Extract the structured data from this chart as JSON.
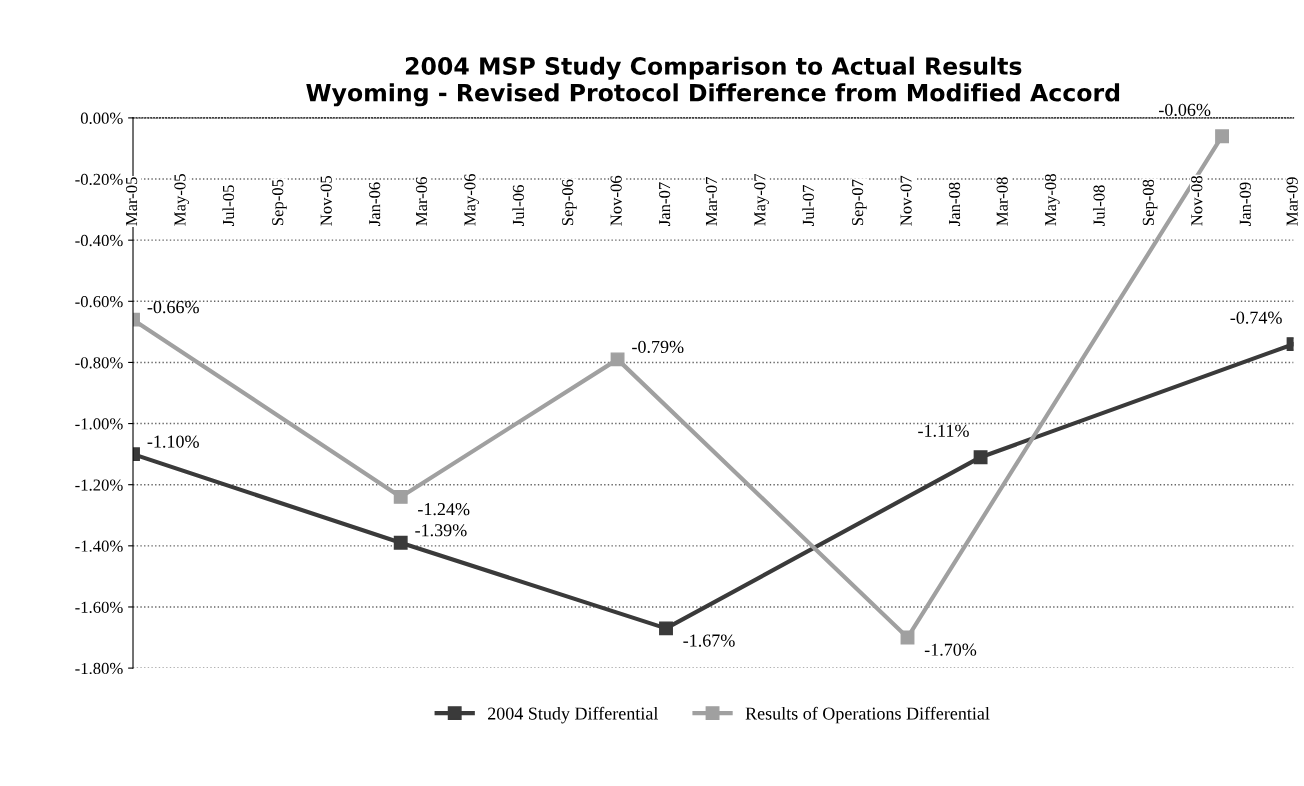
{
  "chart_data": {
    "type": "line",
    "title": "2004 MSP Study Comparison to Actual Results\nWyoming - Revised Protocol Difference from Modified Accord",
    "series": [
      {
        "name": "2004 Study Differential",
        "color": "#3a3a3a",
        "x": [
          "2005-03",
          "2006-02",
          "2007-01",
          "2008-02",
          "2009-03"
        ],
        "values": [
          -1.1,
          -1.39,
          -1.67,
          -1.11,
          -0.74
        ],
        "value_labels": [
          "-1.10%",
          "-1.39%",
          "-1.67%",
          "-1.11%",
          "-0.74%"
        ]
      },
      {
        "name": "Results of Operations Differential",
        "color": "#a0a0a0",
        "x": [
          "2005-03",
          "2006-02",
          "2006-11",
          "2007-11",
          "2008-12"
        ],
        "values": [
          -0.66,
          -1.24,
          -0.79,
          -1.7,
          -0.06
        ],
        "value_labels": [
          "-0.66%",
          "-1.24%",
          "-0.79%",
          "-1.70%",
          "-0.06%"
        ]
      }
    ],
    "xlim": [
      "2005-03",
      "2009-03"
    ],
    "xticks": [
      {
        "value": "2005-03",
        "label": "Mar-05"
      },
      {
        "value": "2005-05",
        "label": "May-05"
      },
      {
        "value": "2005-07",
        "label": "Jul-05"
      },
      {
        "value": "2005-09",
        "label": "Sep-05"
      },
      {
        "value": "2005-11",
        "label": "Nov-05"
      },
      {
        "value": "2006-01",
        "label": "Jan-06"
      },
      {
        "value": "2006-03",
        "label": "Mar-06"
      },
      {
        "value": "2006-05",
        "label": "May-06"
      },
      {
        "value": "2006-07",
        "label": "Jul-06"
      },
      {
        "value": "2006-09",
        "label": "Sep-06"
      },
      {
        "value": "2006-11",
        "label": "Nov-06"
      },
      {
        "value": "2007-01",
        "label": "Jan-07"
      },
      {
        "value": "2007-03",
        "label": "Mar-07"
      },
      {
        "value": "2007-05",
        "label": "May-07"
      },
      {
        "value": "2007-07",
        "label": "Jul-07"
      },
      {
        "value": "2007-09",
        "label": "Sep-07"
      },
      {
        "value": "2007-11",
        "label": "Nov-07"
      },
      {
        "value": "2008-01",
        "label": "Jan-08"
      },
      {
        "value": "2008-03",
        "label": "Mar-08"
      },
      {
        "value": "2008-05",
        "label": "May-08"
      },
      {
        "value": "2008-07",
        "label": "Jul-08"
      },
      {
        "value": "2008-09",
        "label": "Sep-08"
      },
      {
        "value": "2008-11",
        "label": "Nov-08"
      },
      {
        "value": "2009-01",
        "label": "Jan-09"
      },
      {
        "value": "2009-03",
        "label": "Mar-09"
      }
    ],
    "ylim": [
      -1.8,
      0
    ],
    "yticks": [
      {
        "value": 0,
        "label": "0.00%"
      },
      {
        "value": -0.2,
        "label": "-0.20%"
      },
      {
        "value": -0.4,
        "label": "-0.40%"
      },
      {
        "value": -0.6,
        "label": "-0.60%"
      },
      {
        "value": -0.8,
        "label": "-0.80%"
      },
      {
        "value": -1.0,
        "label": "-1.00%"
      },
      {
        "value": -1.2,
        "label": "-1.20%"
      },
      {
        "value": -1.4,
        "label": "-1.40%"
      },
      {
        "value": -1.6,
        "label": "-1.60%"
      },
      {
        "value": -1.8,
        "label": "-1.80%"
      }
    ],
    "grid": "y",
    "legend": "bottom",
    "marker": "square",
    "line_style": "solid"
  }
}
